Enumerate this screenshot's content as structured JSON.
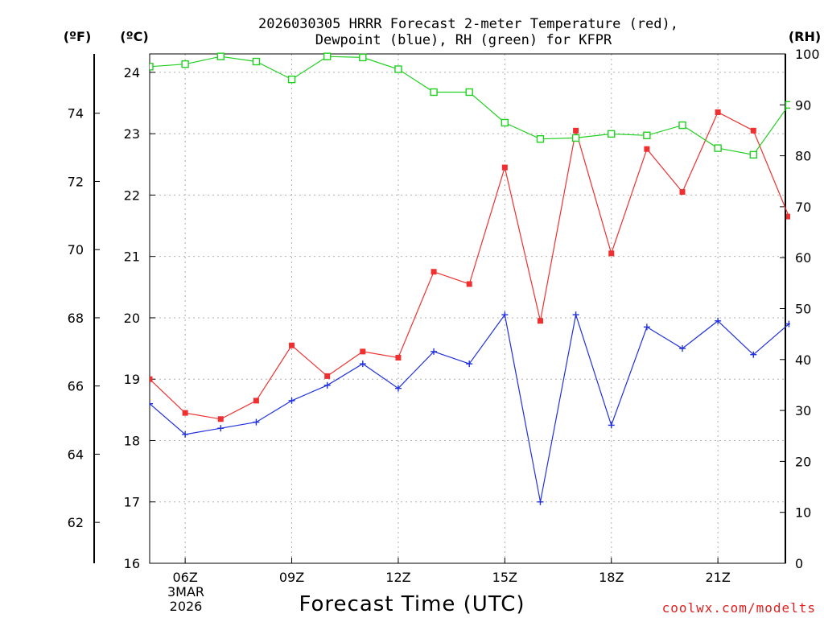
{
  "chart_data": {
    "type": "line",
    "title_line1": "2026030305 HRRR Forecast 2-meter Temperature (red),",
    "title_line2": "Dewpoint (blue), RH (green) for KFPR",
    "xlabel": "Forecast Time (UTC)",
    "credit": "coolwx.com/modelts",
    "date_label": [
      "3MAR",
      "2026"
    ],
    "unit_labels": {
      "fahrenheit": "(ºF)",
      "celsius": "(ºC)",
      "rh": "(RH)"
    },
    "hours": [
      5,
      6,
      7,
      8,
      9,
      10,
      11,
      12,
      13,
      14,
      15,
      16,
      17,
      18,
      19,
      20,
      21,
      22,
      23
    ],
    "x_ticks": [
      {
        "hour": 6,
        "label": "06Z"
      },
      {
        "hour": 9,
        "label": "09Z"
      },
      {
        "hour": 12,
        "label": "12Z"
      },
      {
        "hour": 15,
        "label": "15Z"
      },
      {
        "hour": 18,
        "label": "18Z"
      },
      {
        "hour": 21,
        "label": "21Z"
      }
    ],
    "xlim": [
      5,
      22.9
    ],
    "celsius_axis": {
      "range": [
        16,
        24.3
      ],
      "ticks": [
        16,
        17,
        18,
        19,
        20,
        21,
        22,
        23,
        24
      ]
    },
    "fahrenheit_axis": {
      "ticks": [
        62,
        64,
        66,
        68,
        70,
        72,
        74
      ]
    },
    "rh_axis": {
      "range": [
        0,
        100
      ],
      "ticks": [
        0,
        10,
        20,
        30,
        40,
        50,
        60,
        70,
        80,
        90,
        100
      ]
    },
    "series": [
      {
        "name": "Temperature",
        "color": "#f03030",
        "marker": "filled-square",
        "axis": "celsius",
        "values": [
          19.0,
          18.45,
          18.35,
          18.65,
          19.55,
          19.05,
          19.45,
          19.35,
          20.75,
          20.55,
          22.45,
          19.95,
          23.05,
          21.05,
          22.75,
          22.05,
          23.35,
          23.05,
          21.65
        ]
      },
      {
        "name": "Dewpoint",
        "color": "#2030e0",
        "marker": "plus",
        "axis": "celsius",
        "values": [
          18.6,
          18.1,
          18.2,
          18.3,
          18.65,
          18.9,
          19.25,
          18.85,
          19.45,
          19.25,
          20.05,
          17.0,
          20.05,
          18.25,
          19.85,
          19.5,
          19.95,
          19.4,
          19.9
        ]
      },
      {
        "name": "RH",
        "color": "#20d020",
        "marker": "open-square",
        "axis": "rh",
        "values": [
          97.5,
          98,
          99.5,
          98.5,
          95,
          99.5,
          99.3,
          97,
          92.5,
          92.5,
          86.5,
          83.3,
          83.5,
          84.3,
          84,
          86,
          81.5,
          80.2,
          90
        ]
      }
    ]
  }
}
